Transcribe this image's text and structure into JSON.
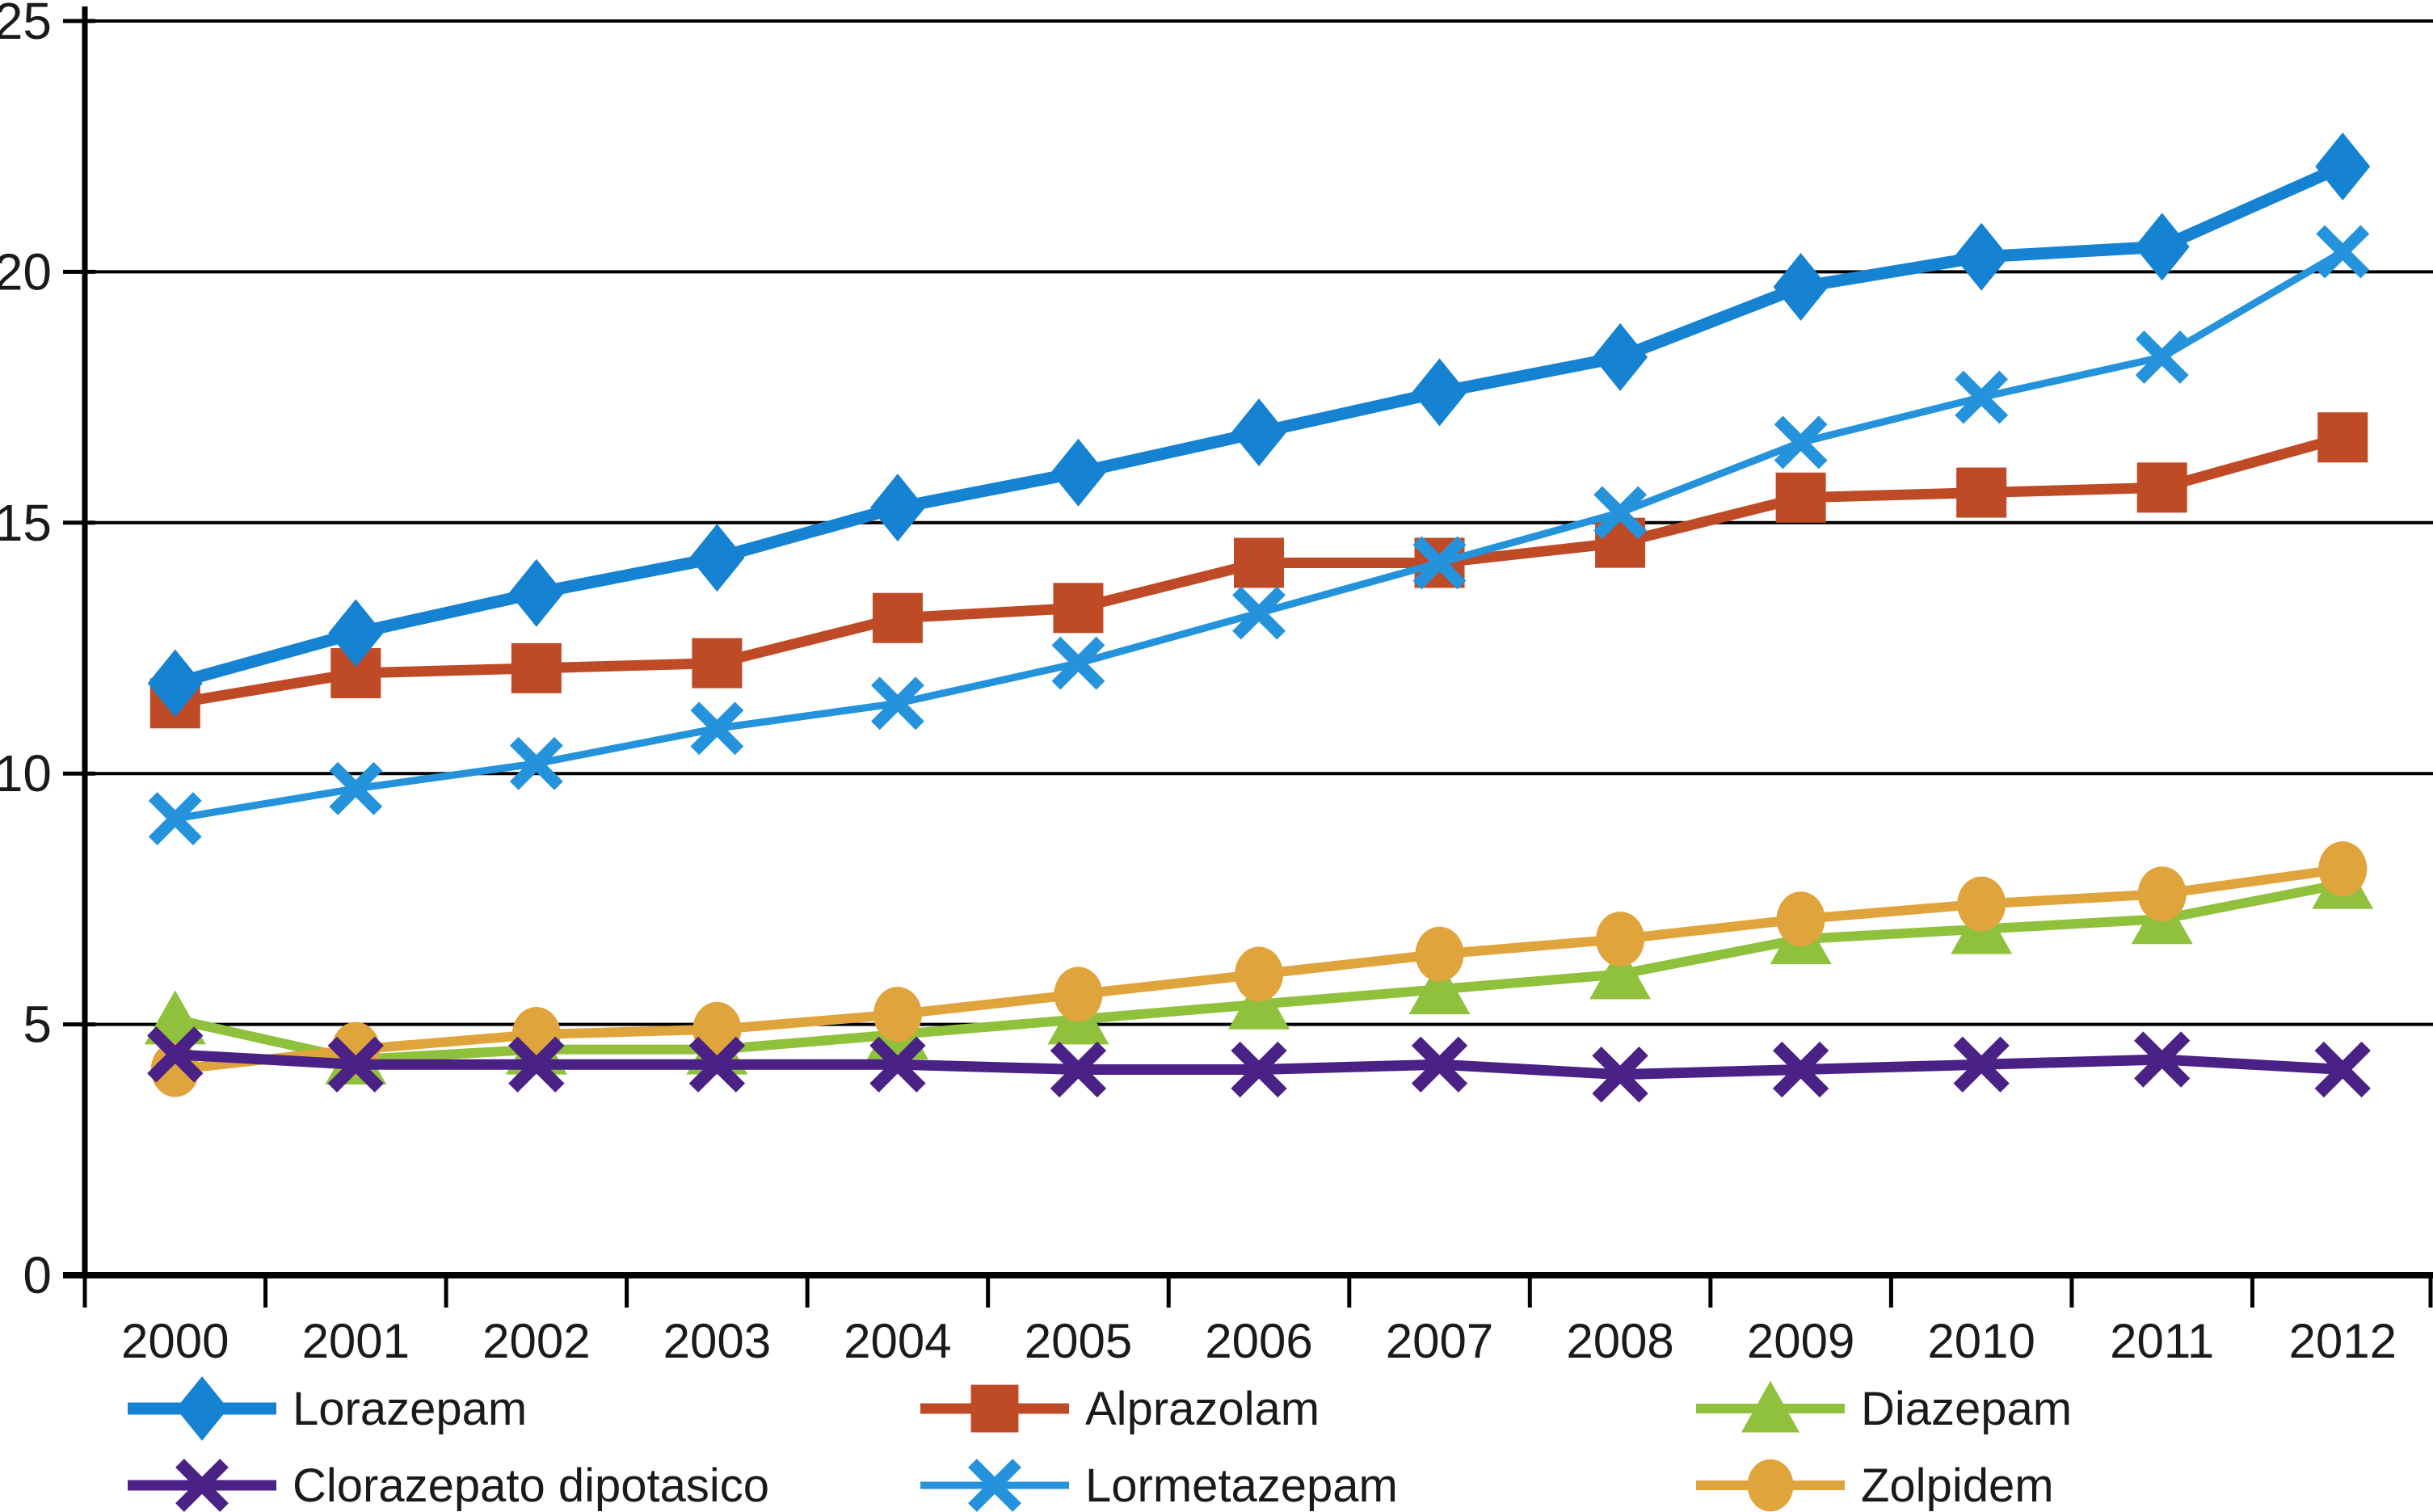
{
  "page": {
    "background": "#ffffff",
    "text_color": "#1a1a1a",
    "axis_color": "#000000"
  },
  "chart_data": {
    "type": "line",
    "title": "",
    "xlabel": "",
    "ylabel": "",
    "grid": true,
    "legend_position": "bottom",
    "categories": [
      "2000",
      "2001",
      "2002",
      "2003",
      "2004",
      "2005",
      "2006",
      "2007",
      "2008",
      "2009",
      "2010",
      "2011",
      "2012"
    ],
    "y_axis": {
      "min": 0,
      "max": 25,
      "tick_interval": 5,
      "tick_labels": [
        "0",
        "5",
        "10",
        "15",
        "20",
        "25"
      ]
    },
    "series": [
      {
        "name": "Lorazepam",
        "color": "#1583D2",
        "marker": "diamond",
        "line_width": 15,
        "values": [
          11.8,
          12.8,
          13.6,
          14.3,
          15.3,
          16.0,
          16.8,
          17.6,
          18.3,
          19.7,
          20.3,
          20.5,
          22.1
        ]
      },
      {
        "name": "Alprazolam",
        "color": "#BF4A26",
        "marker": "square",
        "line_width": 13,
        "values": [
          11.4,
          12.0,
          12.1,
          12.2,
          13.1,
          13.3,
          14.2,
          14.2,
          14.6,
          15.5,
          15.6,
          15.7,
          16.7
        ]
      },
      {
        "name": "Diazepam",
        "color": "#8FC13D",
        "marker": "triangle",
        "line_width": 12,
        "values": [
          5.1,
          4.3,
          4.5,
          4.5,
          4.8,
          5.1,
          5.4,
          5.7,
          6.0,
          6.7,
          6.9,
          7.1,
          7.8
        ]
      },
      {
        "name": "Clorazepato dipotasico",
        "color": "#4A2184",
        "marker": "xmark",
        "line_width": 13,
        "values": [
          4.4,
          4.2,
          4.2,
          4.2,
          4.2,
          4.1,
          4.1,
          4.2,
          4.0,
          4.1,
          4.2,
          4.3,
          4.1
        ]
      },
      {
        "name": "Lormetazepam",
        "color": "#2493DB",
        "marker": "xmark",
        "line_width": 9,
        "values": [
          9.1,
          9.7,
          10.2,
          10.9,
          11.4,
          12.2,
          13.2,
          14.2,
          15.2,
          16.6,
          17.5,
          18.3,
          20.4
        ]
      },
      {
        "name": "Zolpidem",
        "color": "#E0A43C",
        "marker": "circle",
        "line_width": 12,
        "values": [
          4.1,
          4.5,
          4.8,
          4.9,
          5.2,
          5.6,
          6.0,
          6.4,
          6.7,
          7.1,
          7.4,
          7.6,
          8.1
        ]
      }
    ],
    "draw_order": [
      "Diazepam",
      "Zolpidem",
      "Clorazepato dipotasico",
      "Alprazolam",
      "Lormetazepam",
      "Lorazepam"
    ],
    "legend_rows": [
      [
        "Lorazepam",
        "Alprazolam",
        "Diazepam"
      ],
      [
        "Clorazepato dipotasico",
        "Lormetazepam",
        "Zolpidem"
      ]
    ]
  }
}
